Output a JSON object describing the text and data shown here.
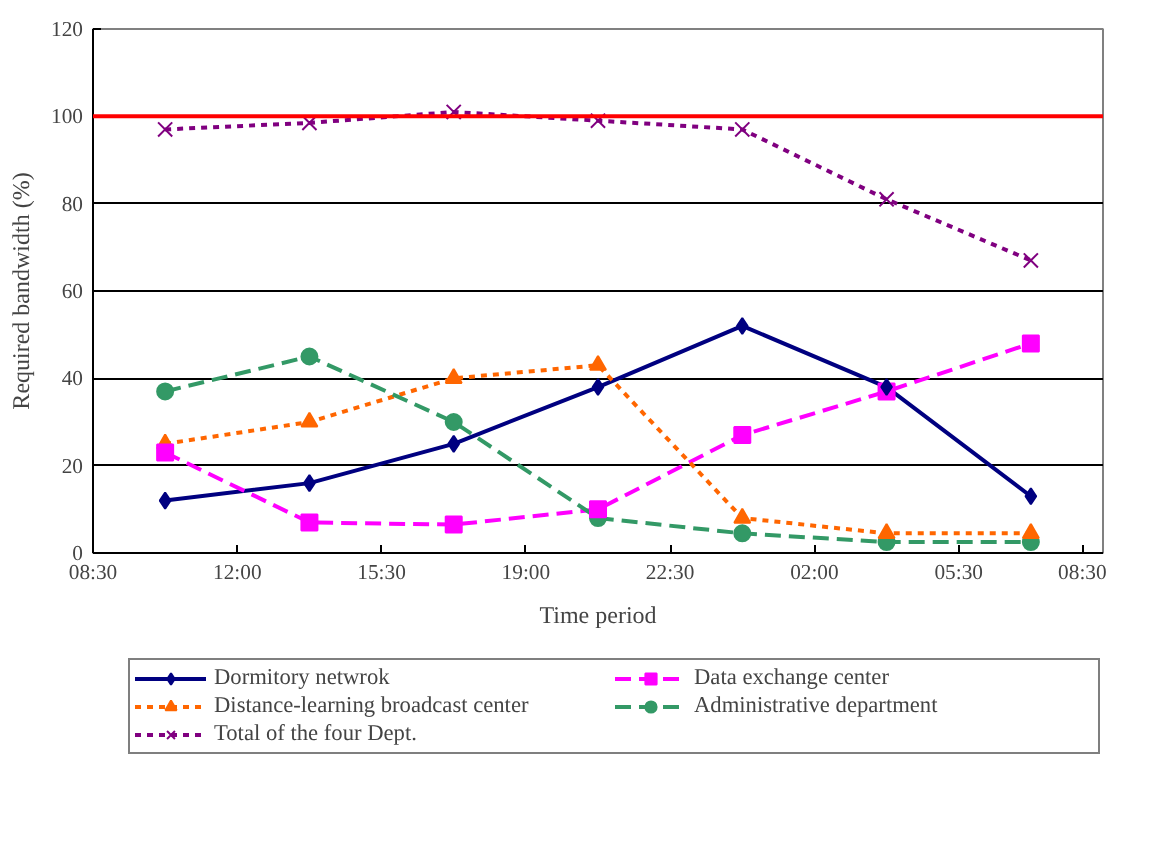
{
  "chart_data": {
    "type": "line",
    "xlabel": "Time period",
    "ylabel": "Required bandwidth (%)",
    "x": [
      "2000-01-01T10:15",
      "2000-01-01T13:45",
      "2000-01-01T17:15",
      "2000-01-01T20:45",
      "2000-01-02T00:15",
      "2000-01-02T03:45",
      "2000-01-02T07:15"
    ],
    "xlim": [
      "2000-01-01T08:30",
      "2000-01-02T09:00"
    ],
    "xticks": [
      {
        "value": "2000-01-01T08:30",
        "label": "08:30"
      },
      {
        "value": "2000-01-01T12:00",
        "label": "12:00"
      },
      {
        "value": "2000-01-01T15:30",
        "label": "15:30"
      },
      {
        "value": "2000-01-01T19:00",
        "label": "19:00"
      },
      {
        "value": "2000-01-01T22:30",
        "label": "22:30"
      },
      {
        "value": "2000-01-02T02:00",
        "label": "02:00"
      },
      {
        "value": "2000-01-02T05:30",
        "label": "05:30"
      },
      {
        "value": "2000-01-02T08:30",
        "label": "08:30"
      }
    ],
    "ylim": [
      0,
      120
    ],
    "yticks": [
      0,
      20,
      40,
      60,
      80,
      100,
      120
    ],
    "grid": "y",
    "legend": "bottom",
    "ref_lines": [
      {
        "axis": "y",
        "value": 100,
        "color": "#ff0000",
        "line_style": "solid"
      }
    ],
    "series": [
      {
        "name": "Dormitory netwrok",
        "color": "#000080",
        "marker": "diamond",
        "line_style": "solid",
        "values": [
          12,
          16,
          25,
          38,
          52,
          38,
          13
        ]
      },
      {
        "name": "Data exchange center",
        "color": "#ff00ff",
        "marker": "square",
        "line_style": "dashed",
        "values": [
          23,
          7,
          6.5,
          10,
          27,
          37,
          48
        ]
      },
      {
        "name": "Distance-learning broadcast center",
        "color": "#ff6600",
        "marker": "triangle",
        "line_style": "dotted",
        "values": [
          25,
          30,
          40,
          43,
          8,
          4.5,
          4.5
        ]
      },
      {
        "name": "Administrative department",
        "color": "#339966",
        "marker": "circle",
        "line_style": "dashed",
        "values": [
          37,
          45,
          30,
          8,
          4.5,
          2.5,
          2.5
        ]
      },
      {
        "name": "Total of the four Dept.",
        "color": "#800080",
        "marker": "cross",
        "line_style": "dotted",
        "values": [
          97,
          98.5,
          101,
          99,
          97,
          81,
          67
        ]
      }
    ]
  }
}
